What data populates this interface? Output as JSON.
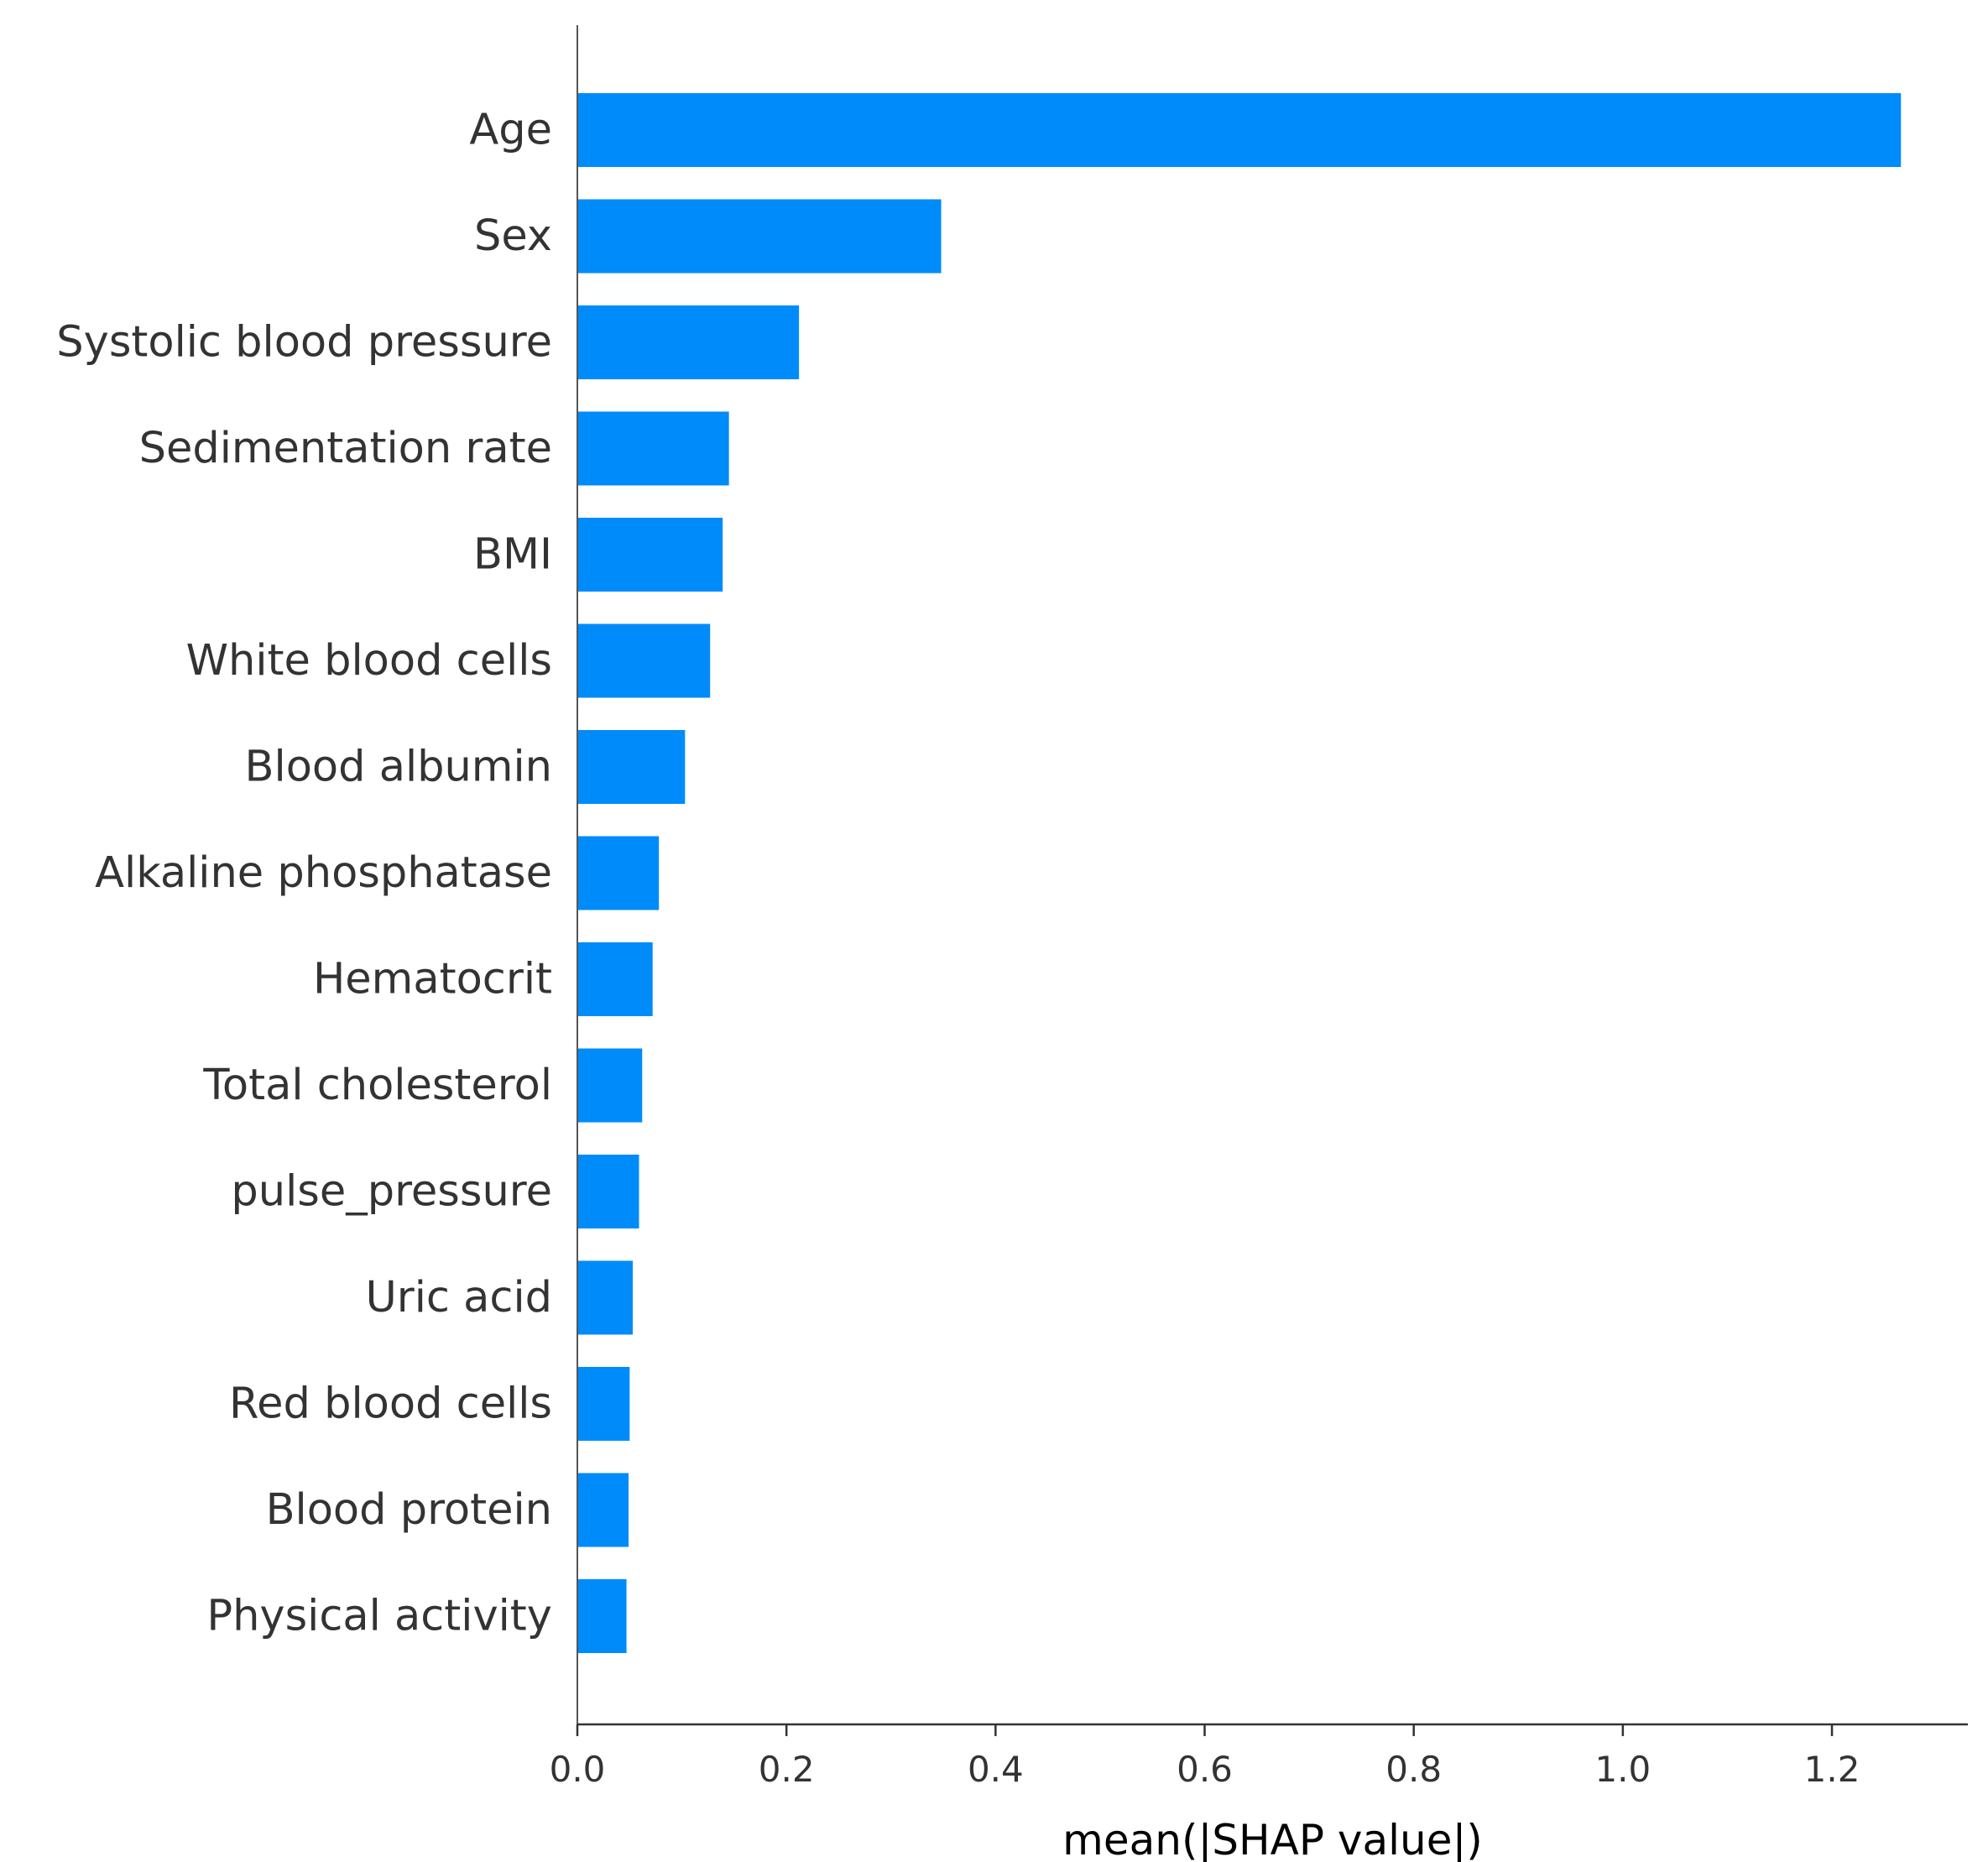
{
  "chart_data": {
    "type": "bar",
    "orientation": "horizontal",
    "categories": [
      "Age",
      "Sex",
      "Systolic blood pressure",
      "Sedimentation rate",
      "BMI",
      "White blood cells",
      "Blood albumin",
      "Alkaline phosphatase",
      "Hematocrit",
      "Total cholesterol",
      "pulse_pressure",
      "Uric acid",
      "Red blood cells",
      "Blood protein",
      "Physical activity"
    ],
    "values": [
      1.266,
      0.348,
      0.212,
      0.145,
      0.139,
      0.127,
      0.103,
      0.078,
      0.072,
      0.062,
      0.059,
      0.053,
      0.05,
      0.049,
      0.047
    ],
    "title": "",
    "xlabel": "mean(|SHAP value|)",
    "ylabel": "",
    "xlim": [
      0,
      1.33
    ],
    "xticks": [
      0.0,
      0.2,
      0.4,
      0.6,
      0.8,
      1.0,
      1.2
    ],
    "xtick_labels": [
      "0.0",
      "0.2",
      "0.4",
      "0.6",
      "0.8",
      "1.0",
      "1.2"
    ],
    "grid": false,
    "colors": {
      "bar": "#008bfb",
      "text": "#333333",
      "axis": "#333333"
    }
  }
}
